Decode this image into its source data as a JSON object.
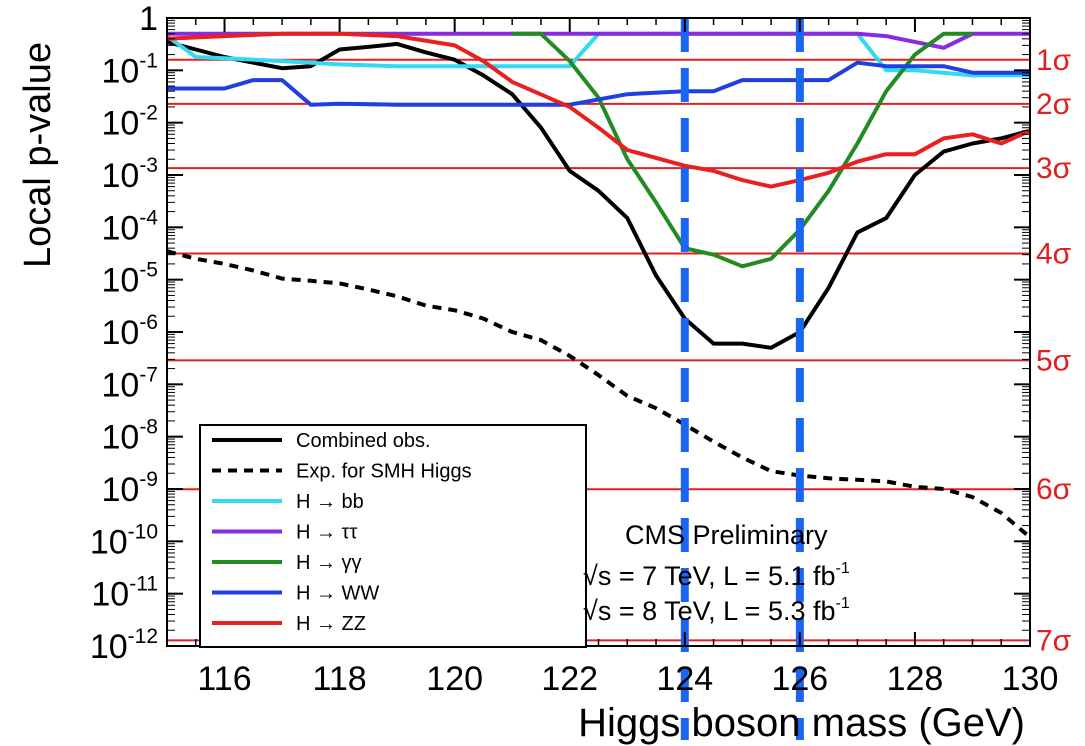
{
  "chart_data": {
    "type": "line",
    "xlabel": "Higgs boson mass (GeV)",
    "ylabel": "Local p-value",
    "xlim": [
      115,
      130
    ],
    "ylim": [
      1e-12,
      1
    ],
    "y_scale": "log",
    "x_ticks": [
      116,
      118,
      120,
      122,
      124,
      126,
      128,
      130
    ],
    "x_tick_labels": [
      "116",
      "118",
      "120",
      "122",
      "124",
      "126",
      "128",
      "130"
    ],
    "y_ticks": [
      {
        "value": 1,
        "base": "1",
        "exp": ""
      },
      {
        "value": 0.1,
        "base": "10",
        "exp": "-1"
      },
      {
        "value": 0.01,
        "base": "10",
        "exp": "-2"
      },
      {
        "value": 0.001,
        "base": "10",
        "exp": "-3"
      },
      {
        "value": 0.0001,
        "base": "10",
        "exp": "-4"
      },
      {
        "value": 1e-05,
        "base": "10",
        "exp": "-5"
      },
      {
        "value": 1e-06,
        "base": "10",
        "exp": "-6"
      },
      {
        "value": 1e-07,
        "base": "10",
        "exp": "-7"
      },
      {
        "value": 1e-08,
        "base": "10",
        "exp": "-8"
      },
      {
        "value": 1e-09,
        "base": "10",
        "exp": "-9"
      },
      {
        "value": 1e-10,
        "base": "10",
        "exp": "-10"
      },
      {
        "value": 1e-11,
        "base": "10",
        "exp": "-11"
      },
      {
        "value": 1e-12,
        "base": "10",
        "exp": "-12"
      }
    ],
    "sigma_lines": [
      {
        "label": "1σ",
        "p": 0.159
      },
      {
        "label": "2σ",
        "p": 0.0228
      },
      {
        "label": "3σ",
        "p": 0.00135
      },
      {
        "label": "4σ",
        "p": 3.17e-05
      },
      {
        "label": "5σ",
        "p": 2.87e-07
      },
      {
        "label": "6σ",
        "p": 9.9e-10
      },
      {
        "label": "7σ",
        "p": 1.28e-12
      }
    ],
    "vertical_markers": [
      124,
      126
    ],
    "colors": {
      "sigma": "#e02020",
      "markers": "#1a66f2"
    },
    "series": [
      {
        "name": "Combined  obs.",
        "color": "#000000",
        "dash": "solid",
        "x": [
          115,
          115.5,
          116,
          116.5,
          117,
          117.5,
          118,
          118.5,
          119,
          119.5,
          120,
          120.5,
          121,
          121.5,
          122,
          122.5,
          123,
          123.5,
          124,
          124.5,
          125,
          125.5,
          126,
          126.5,
          127,
          127.5,
          128,
          128.5,
          129,
          129.5,
          130
        ],
        "y": [
          0.35,
          0.25,
          0.18,
          0.14,
          0.11,
          0.12,
          0.25,
          0.28,
          0.32,
          0.22,
          0.16,
          0.08,
          0.035,
          0.008,
          0.0012,
          0.0005,
          0.00015,
          1.2e-05,
          1.8e-06,
          6e-07,
          6e-07,
          5e-07,
          1e-06,
          7e-06,
          8e-05,
          0.00015,
          0.001,
          0.0028,
          0.004,
          0.005,
          0.007
        ]
      },
      {
        "name": "Exp. for SMH Higgs",
        "color": "#000000",
        "dash": "dashed",
        "x": [
          115,
          115.5,
          116,
          116.5,
          117,
          117.5,
          118,
          118.5,
          119,
          119.5,
          120,
          120.5,
          121,
          121.5,
          122,
          122.5,
          123,
          123.5,
          124,
          124.5,
          125,
          125.5,
          126,
          126.5,
          127,
          127.5,
          128,
          128.5,
          129,
          129.5,
          130
        ],
        "y": [
          3.5e-05,
          2.5e-05,
          2e-05,
          1.5e-05,
          1.05e-05,
          9.5e-06,
          8.5e-06,
          6.5e-06,
          4.8e-06,
          3.2e-06,
          2.6e-06,
          1.8e-06,
          1e-06,
          7e-07,
          3.5e-07,
          1.5e-07,
          6e-08,
          3.5e-08,
          1.7e-08,
          8e-09,
          4e-09,
          2.2e-09,
          1.8e-09,
          1.6e-09,
          1.5e-09,
          1.4e-09,
          1.1e-09,
          1e-09,
          7e-10,
          3.5e-10,
          1.2e-10
        ]
      },
      {
        "name": "H → bb",
        "color": "#33d9f2",
        "dash": "solid",
        "x": [
          115,
          115.5,
          116,
          117,
          118,
          119,
          120,
          121,
          122,
          122.5,
          123,
          124,
          125,
          126,
          127,
          127.5,
          128,
          129,
          130
        ],
        "y": [
          0.45,
          0.18,
          0.17,
          0.15,
          0.13,
          0.12,
          0.12,
          0.12,
          0.12,
          0.5,
          0.5,
          0.5,
          0.5,
          0.5,
          0.5,
          0.1,
          0.1,
          0.08,
          0.08
        ]
      },
      {
        "name": "H → ττ",
        "color": "#8a2be2",
        "dash": "solid",
        "x": [
          115,
          118,
          121,
          124,
          126,
          127,
          127.5,
          128,
          128.5,
          129,
          129.5,
          130
        ],
        "y": [
          0.5,
          0.5,
          0.5,
          0.5,
          0.5,
          0.5,
          0.45,
          0.35,
          0.27,
          0.5,
          0.5,
          0.5
        ]
      },
      {
        "name": "H → γγ",
        "color": "#228b22",
        "dash": "solid",
        "x": [
          121,
          121.5,
          122,
          122.5,
          123,
          123.5,
          124,
          124.5,
          125,
          125.5,
          126,
          126.5,
          127,
          127.5,
          128,
          128.5,
          129
        ],
        "y": [
          0.5,
          0.5,
          0.15,
          0.03,
          0.002,
          0.0003,
          4e-05,
          3e-05,
          1.8e-05,
          2.5e-05,
          9e-05,
          0.0005,
          0.004,
          0.04,
          0.2,
          0.5,
          0.5
        ]
      },
      {
        "name": "H → WW",
        "color": "#1f3fe0",
        "dash": "solid",
        "x": [
          115,
          116,
          116.5,
          117,
          117.5,
          118,
          119,
          120,
          121,
          122,
          123,
          124,
          124.5,
          125,
          126,
          126.5,
          127,
          127.5,
          128,
          128.5,
          129,
          130
        ],
        "y": [
          0.045,
          0.045,
          0.065,
          0.065,
          0.022,
          0.023,
          0.022,
          0.022,
          0.022,
          0.022,
          0.035,
          0.04,
          0.04,
          0.065,
          0.065,
          0.065,
          0.14,
          0.12,
          0.12,
          0.12,
          0.09,
          0.09
        ]
      },
      {
        "name": "H → ZZ",
        "color": "#e82020",
        "dash": "solid",
        "x": [
          115,
          116,
          117,
          118,
          119,
          120,
          120.5,
          121,
          122,
          122.5,
          123,
          124,
          124.5,
          125,
          125.5,
          126,
          126.5,
          127,
          127.5,
          128,
          128.5,
          129,
          129.5,
          130
        ],
        "y": [
          0.4,
          0.45,
          0.5,
          0.5,
          0.45,
          0.3,
          0.15,
          0.06,
          0.02,
          0.008,
          0.003,
          0.0015,
          0.0012,
          0.0008,
          0.0006,
          0.0008,
          0.0011,
          0.0018,
          0.0025,
          0.0025,
          0.005,
          0.006,
          0.004,
          0.007
        ]
      }
    ],
    "legend": {
      "placement": "bottom-left",
      "entries": [
        "Combined  obs.",
        "Exp. for SMH Higgs",
        "H → bb",
        "H → ττ",
        "H → γγ",
        "H → WW",
        "H → ZZ"
      ]
    },
    "annotations": {
      "title": "CMS Preliminary",
      "line1": "√s = 7 TeV, L = 5.1 fb",
      "line1_sup": "-1",
      "line2": "√s = 8 TeV, L = 5.3 fb",
      "line2_sup": "-1"
    }
  }
}
